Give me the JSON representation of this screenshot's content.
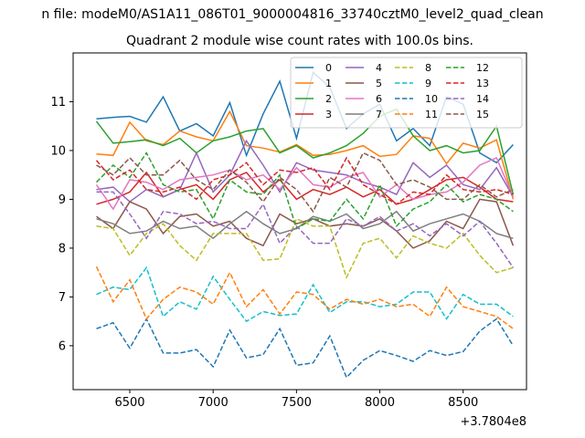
{
  "chart_data": {
    "type": "line",
    "title_line1": "n file: modeM0/AS1A11_086T01_9000004816_33740cztM0_level2_quad_clean",
    "title_line2": "Quadrant 2 module wise count rates with 100.0s bins.",
    "xlabel": "",
    "ylabel": "",
    "x_offset_label": "+3.7804e8",
    "xlim": [
      6160,
      8880
    ],
    "ylim": [
      5.1,
      12.0
    ],
    "xticks": [
      6500,
      7000,
      7500,
      8000,
      8500
    ],
    "yticks": [
      6,
      7,
      8,
      9,
      10,
      11
    ],
    "grid": false,
    "legend": {
      "placement": "top-right",
      "ncol": 4
    },
    "x": [
      6300,
      6400,
      6500,
      6600,
      6700,
      6800,
      6900,
      7000,
      7100,
      7200,
      7300,
      7400,
      7500,
      7600,
      7700,
      7800,
      7900,
      8000,
      8100,
      8200,
      8300,
      8400,
      8500,
      8600,
      8700,
      8800
    ],
    "series": [
      {
        "name": "0",
        "color": "#1f77b4",
        "dash": "solid",
        "values": [
          10.65,
          10.68,
          10.7,
          10.58,
          11.1,
          10.4,
          10.55,
          10.3,
          10.98,
          9.9,
          10.75,
          11.42,
          10.25,
          11.6,
          11.3,
          10.45,
          10.75,
          10.95,
          10.2,
          10.45,
          10.1,
          11.1,
          10.95,
          9.95,
          9.75,
          10.12
        ]
      },
      {
        "name": "1",
        "color": "#ff7f0e",
        "dash": "solid",
        "values": [
          9.93,
          9.9,
          10.58,
          10.2,
          10.12,
          10.4,
          10.28,
          10.2,
          10.8,
          10.1,
          10.05,
          9.97,
          10.12,
          9.9,
          9.92,
          10.0,
          10.1,
          9.88,
          9.92,
          10.3,
          10.25,
          9.73,
          10.15,
          10.05,
          10.22,
          9.0
        ]
      },
      {
        "name": "2",
        "color": "#2ca02c",
        "dash": "solid",
        "values": [
          10.6,
          10.15,
          10.18,
          10.22,
          10.1,
          10.25,
          9.95,
          10.2,
          10.28,
          10.4,
          10.45,
          9.95,
          10.1,
          9.85,
          9.95,
          10.1,
          10.35,
          10.7,
          10.85,
          10.3,
          10.0,
          10.1,
          9.95,
          10.0,
          10.5,
          9.1
        ]
      },
      {
        "name": "3",
        "color": "#d62728",
        "dash": "solid",
        "values": [
          8.9,
          9.0,
          9.15,
          9.55,
          9.05,
          9.2,
          9.3,
          9.0,
          9.4,
          9.55,
          9.15,
          9.4,
          9.0,
          9.2,
          9.1,
          9.25,
          9.05,
          9.2,
          8.9,
          9.0,
          9.2,
          9.4,
          9.45,
          9.25,
          9.0,
          8.95
        ]
      },
      {
        "name": "4",
        "color": "#9467bd",
        "dash": "solid",
        "values": [
          9.2,
          9.25,
          8.95,
          9.2,
          9.05,
          9.2,
          9.95,
          9.15,
          9.5,
          10.2,
          9.7,
          9.15,
          9.75,
          9.6,
          9.55,
          9.5,
          9.35,
          9.25,
          9.1,
          9.75,
          9.45,
          9.7,
          9.3,
          9.2,
          9.65,
          9.05
        ]
      },
      {
        "name": "5",
        "color": "#8c564b",
        "dash": "solid",
        "values": [
          8.65,
          8.4,
          8.95,
          8.8,
          8.3,
          8.65,
          8.7,
          8.45,
          8.55,
          8.2,
          8.05,
          8.7,
          8.5,
          8.6,
          8.45,
          8.5,
          8.45,
          8.6,
          8.35,
          8.0,
          8.15,
          8.55,
          8.4,
          9.0,
          8.95,
          8.05
        ]
      },
      {
        "name": "6",
        "color": "#e377c2",
        "dash": "solid",
        "values": [
          9.3,
          8.8,
          9.4,
          9.35,
          9.2,
          9.4,
          9.45,
          9.5,
          9.6,
          9.4,
          9.5,
          9.2,
          9.65,
          9.3,
          9.25,
          9.45,
          9.55,
          9.05,
          9.3,
          9.0,
          9.1,
          9.15,
          9.35,
          9.7,
          9.85,
          9.05
        ]
      },
      {
        "name": "7",
        "color": "#7f7f7f",
        "dash": "solid",
        "values": [
          8.6,
          8.5,
          8.3,
          8.35,
          8.55,
          8.4,
          8.45,
          8.2,
          8.5,
          8.75,
          8.5,
          8.3,
          8.4,
          8.65,
          8.55,
          8.7,
          8.4,
          8.5,
          8.75,
          8.35,
          8.5,
          8.6,
          8.7,
          8.55,
          8.3,
          8.2
        ]
      },
      {
        "name": "8",
        "color": "#bcbd22",
        "dash": "dashed",
        "values": [
          8.45,
          8.4,
          7.85,
          8.3,
          8.5,
          8.05,
          7.75,
          8.3,
          8.3,
          8.3,
          7.75,
          7.78,
          8.6,
          8.45,
          8.45,
          7.4,
          8.1,
          8.2,
          7.8,
          8.25,
          8.1,
          8.0,
          8.3,
          7.85,
          7.5,
          7.6
        ]
      },
      {
        "name": "9",
        "color": "#17becf",
        "dash": "dashed",
        "values": [
          7.05,
          7.2,
          7.15,
          7.6,
          6.6,
          6.9,
          6.75,
          7.42,
          6.95,
          6.5,
          6.7,
          6.62,
          6.65,
          7.25,
          6.68,
          6.9,
          6.9,
          6.8,
          6.85,
          7.1,
          7.1,
          6.55,
          7.05,
          6.85,
          6.85,
          6.6
        ]
      },
      {
        "name": "10",
        "color": "#1f77b4",
        "dash": "dashed",
        "values": [
          6.35,
          6.47,
          5.95,
          6.55,
          5.85,
          5.85,
          5.92,
          5.57,
          6.32,
          5.75,
          5.82,
          6.35,
          5.6,
          5.65,
          6.2,
          5.35,
          5.7,
          5.9,
          5.8,
          5.68,
          5.9,
          5.8,
          5.88,
          6.3,
          6.55,
          6.0
        ]
      },
      {
        "name": "11",
        "color": "#ff7f0e",
        "dash": "dashed",
        "values": [
          7.62,
          6.9,
          7.35,
          6.55,
          6.95,
          7.2,
          7.1,
          6.85,
          7.5,
          6.8,
          7.15,
          6.65,
          7.1,
          7.05,
          6.75,
          6.95,
          6.85,
          6.95,
          6.8,
          6.85,
          6.6,
          7.2,
          6.8,
          6.7,
          6.6,
          6.35
        ]
      },
      {
        "name": "12",
        "color": "#2ca02c",
        "dash": "dashed",
        "values": [
          9.35,
          9.7,
          9.45,
          9.95,
          9.3,
          9.15,
          9.2,
          8.6,
          9.4,
          9.15,
          9.1,
          9.5,
          8.4,
          8.6,
          8.55,
          9.0,
          8.6,
          9.3,
          8.45,
          8.8,
          8.95,
          9.3,
          8.95,
          9.1,
          9.0,
          8.75
        ]
      },
      {
        "name": "13",
        "color": "#d62728",
        "dash": "dashed",
        "values": [
          9.8,
          9.4,
          9.6,
          9.2,
          9.15,
          9.25,
          9.0,
          9.4,
          9.5,
          9.75,
          9.3,
          9.6,
          9.55,
          9.65,
          9.2,
          9.85,
          9.3,
          9.1,
          8.9,
          9.15,
          9.1,
          9.5,
          9.2,
          9.15,
          9.2,
          9.1
        ]
      },
      {
        "name": "14",
        "color": "#9467bd",
        "dash": "dashed",
        "values": [
          9.15,
          9.15,
          8.7,
          8.2,
          8.75,
          8.7,
          8.5,
          8.55,
          8.4,
          8.4,
          8.9,
          8.1,
          8.45,
          8.1,
          8.1,
          8.6,
          8.45,
          8.65,
          8.35,
          8.5,
          8.25,
          8.5,
          8.25,
          8.55,
          8.1,
          7.6
        ]
      },
      {
        "name": "15",
        "color": "#8c564b",
        "dash": "dashed",
        "values": [
          9.7,
          9.5,
          9.85,
          9.5,
          9.5,
          9.8,
          9.4,
          9.2,
          9.6,
          9.35,
          8.95,
          9.45,
          9.2,
          8.75,
          9.45,
          9.25,
          9.95,
          9.8,
          9.3,
          9.4,
          9.25,
          9.0,
          9.0,
          9.3,
          9.05,
          9.2
        ]
      }
    ]
  }
}
